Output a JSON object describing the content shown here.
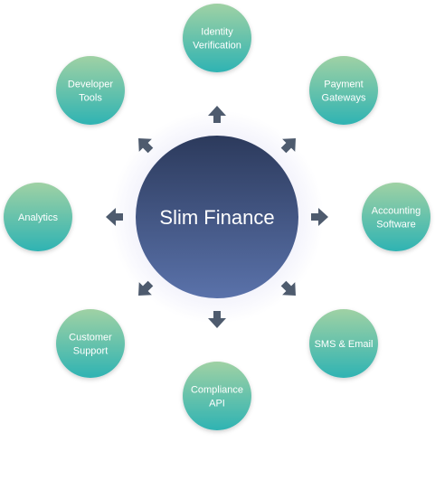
{
  "hub": {
    "label": "Slim Finance",
    "colors": {
      "top": "#2c3a5c",
      "bottom": "#5a72aa",
      "glow": "#c9c9f0"
    }
  },
  "satellite_colors": {
    "top": "#9fd1a4",
    "bottom": "#2fb3b3",
    "text": "#ffffff"
  },
  "arrow_color": "#4e5b6e",
  "nodes": [
    {
      "id": "identity-verification",
      "lines": [
        "Identity",
        "Verification"
      ]
    },
    {
      "id": "payment-gateways",
      "lines": [
        "Payment",
        "Gateways"
      ]
    },
    {
      "id": "accounting-software",
      "lines": [
        "Accounting",
        "Software"
      ]
    },
    {
      "id": "sms-email",
      "lines": [
        "SMS & Email"
      ]
    },
    {
      "id": "compliance-api",
      "lines": [
        "Compliance",
        "API"
      ]
    },
    {
      "id": "customer-support",
      "lines": [
        "Customer",
        "Support"
      ]
    },
    {
      "id": "analytics",
      "lines": [
        "Analytics"
      ]
    },
    {
      "id": "developer-tools",
      "lines": [
        "Developer",
        "Tools"
      ]
    }
  ]
}
